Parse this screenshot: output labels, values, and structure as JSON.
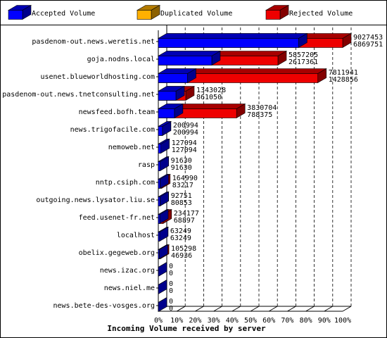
{
  "chart_data": {
    "type": "bar3d",
    "orientation": "horizontal",
    "xlabel": "Incoming Volume received by server",
    "legend": [
      {
        "name": "Accepted Volume",
        "color": "#0000ff"
      },
      {
        "name": "Duplicated Volume",
        "color": "#ffb000"
      },
      {
        "name": "Rejected Volume",
        "color": "#ee0000"
      }
    ],
    "categories": [
      "pasdenom-out.news.weretis.net",
      "goja.nodns.local",
      "usenet.blueworldhosting.com",
      "pasdenom-out.news.tnetconsulting.net",
      "newsfeed.bofh.team",
      "news.trigofacile.com",
      "nemoweb.net",
      "rasp",
      "nntp.csiph.com",
      "outgoing.news.lysator.liu.se",
      "feed.usenet-fr.net",
      "localhost",
      "obelix.gegeweb.org",
      "news.izac.org",
      "news.niel.me",
      "news.bete-des-vosges.org"
    ],
    "totals": [
      9027453,
      5857205,
      7811941,
      1343028,
      3830704,
      200994,
      127094,
      91630,
      164990,
      92751,
      234177,
      63249,
      105298,
      0,
      0,
      0
    ],
    "accepted": [
      6869751,
      2617361,
      1428856,
      861050,
      788375,
      200994,
      127094,
      91630,
      83217,
      80853,
      68897,
      63249,
      46936,
      0,
      0,
      0
    ],
    "xlim": [
      0,
      9027453
    ],
    "xticks": [
      {
        "value": 0,
        "label": "0%"
      },
      {
        "value": 902745.3,
        "label": "10%"
      },
      {
        "value": 1805490.6,
        "label": "20%"
      },
      {
        "value": 2708235.9,
        "label": "30%"
      },
      {
        "value": 3610981.2,
        "label": "40%"
      },
      {
        "value": 4513726.5,
        "label": "50%"
      },
      {
        "value": 5416471.8,
        "label": "60%"
      },
      {
        "value": 6319217.1,
        "label": "70%"
      },
      {
        "value": 7221962.4,
        "label": "80%"
      },
      {
        "value": 8124707.7,
        "label": "90%"
      },
      {
        "value": 9027453,
        "label": "100%"
      }
    ],
    "grid": true
  }
}
